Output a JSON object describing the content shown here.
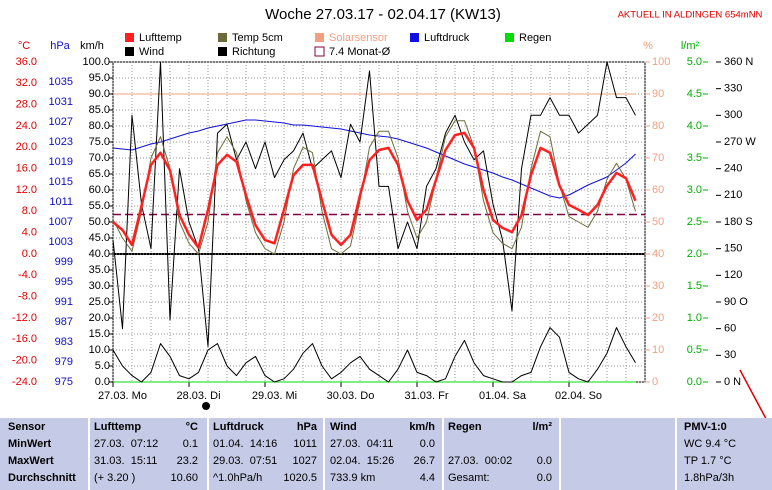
{
  "chart_data": {
    "type": "line",
    "title": "Woche 27.03.17 - 02.04.17 (KW13)",
    "note": "AKTUELL IN ALDINGEN 654mNN",
    "categories": [
      null,
      "27.03. Mo",
      null,
      null,
      null,
      null,
      null,
      null,
      null,
      "28.03. Di",
      null,
      null,
      null,
      null,
      null,
      null,
      null,
      "29.03. Mi",
      null,
      null,
      null,
      null,
      null,
      null,
      null,
      "30.03. Do",
      null,
      null,
      null,
      null,
      null,
      null,
      null,
      "31.03. Fr",
      null,
      null,
      null,
      null,
      null,
      null,
      null,
      "01.04. Sa",
      null,
      null,
      null,
      null,
      null,
      null,
      null,
      "02.04. So",
      null,
      null,
      null,
      null,
      null,
      null
    ],
    "ylabel": "°C",
    "ycolor": "#e00000",
    "ylim": [
      -24,
      36
    ],
    "yticks": [
      {
        "value": -24,
        "label": "-24.0"
      },
      {
        "value": -20,
        "label": "-20.0"
      },
      {
        "value": -16,
        "label": "-16.0"
      },
      {
        "value": -12,
        "label": "-12.0"
      },
      {
        "value": -8,
        "label": "-8.0"
      },
      {
        "value": -4,
        "label": "-4.0"
      },
      {
        "value": 0,
        "label": "0.0"
      },
      {
        "value": 4,
        "label": "4.0"
      },
      {
        "value": 8,
        "label": "8.0"
      },
      {
        "value": 12,
        "label": "12.0"
      },
      {
        "value": 16,
        "label": "16.0"
      },
      {
        "value": 20,
        "label": "20.0"
      },
      {
        "value": 24,
        "label": "24.0"
      },
      {
        "value": 28,
        "label": "28.0"
      },
      {
        "value": 32,
        "label": "32.0"
      },
      {
        "value": 36,
        "label": "36.0"
      }
    ],
    "zero_line": true,
    "y2label": "hPa",
    "y2color": "#1010c0",
    "y2lim": [
      975,
      1039
    ],
    "y2ticks": [
      975,
      979,
      983,
      987,
      991,
      995,
      999,
      1003,
      1007,
      1011,
      1015,
      1019,
      1023,
      1027,
      1031,
      1035
    ],
    "y3label": "km/h",
    "y3color": "#000000",
    "y3lim": [
      0,
      100
    ],
    "y3ticks": [
      {
        "value": 0,
        "label": "0.0"
      },
      {
        "value": 5,
        "label": "5.0"
      },
      {
        "value": 10,
        "label": "10.0"
      },
      {
        "value": 15,
        "label": "15.0"
      },
      {
        "value": 20,
        "label": "20.0"
      },
      {
        "value": 25,
        "label": "25.0"
      },
      {
        "value": 30,
        "label": "30.0"
      },
      {
        "value": 35,
        "label": "35.0"
      },
      {
        "value": 40,
        "label": "40.0"
      },
      {
        "value": 45,
        "label": "45.0"
      },
      {
        "value": 50,
        "label": "50.0"
      },
      {
        "value": 55,
        "label": "55.0"
      },
      {
        "value": 60,
        "label": "60.0"
      },
      {
        "value": 65,
        "label": "65.0"
      },
      {
        "value": 70,
        "label": "70.0"
      },
      {
        "value": 75,
        "label": "75.0"
      },
      {
        "value": 80,
        "label": "80.0"
      },
      {
        "value": 85,
        "label": "85.0"
      },
      {
        "value": 90,
        "label": "90.0"
      },
      {
        "value": 95,
        "label": "95.0"
      },
      {
        "value": 100,
        "label": "100.0"
      }
    ],
    "grid": true,
    "y4label": "%",
    "y4color": "#f0a080",
    "y4lim": [
      0,
      100
    ],
    "y4ticks": [
      0,
      10,
      20,
      30,
      40,
      50,
      60,
      70,
      80,
      90,
      100
    ],
    "y5label": "l/m²",
    "y5color": "#00b000",
    "y5lim": [
      0,
      5
    ],
    "y5ticks": [
      {
        "value": 0,
        "label": "0.0"
      },
      0.5,
      {
        "value": 1,
        "label": "1.0"
      },
      1.5,
      {
        "value": 2,
        "label": "2.0"
      },
      2.5,
      {
        "value": 3,
        "label": "3.0"
      },
      3.5,
      {
        "value": 4,
        "label": "4.0"
      },
      4.5,
      {
        "value": 5,
        "label": "5.0"
      }
    ],
    "y6color": "#000000",
    "y6lim": [
      0,
      360
    ],
    "y6ticks": [
      {
        "value": 0,
        "label": "0 N"
      },
      30,
      60,
      {
        "value": 90,
        "label": "90 O"
      },
      120,
      150,
      {
        "value": 180,
        "label": "180 S"
      },
      210,
      240,
      {
        "value": 270,
        "label": "270 W"
      },
      300,
      330,
      {
        "value": 360,
        "label": "360 N"
      }
    ],
    "series": [
      {
        "name": "Lufttemp",
        "color": "#ff2020",
        "axis": "y",
        "width": 2.5,
        "values": [
          6.0,
          4.5,
          1.7,
          9.0,
          16.7,
          19.0,
          15.7,
          7.3,
          3.6,
          1.2,
          8.3,
          16.7,
          18.6,
          17.3,
          11.0,
          5.4,
          2.6,
          2.0,
          8.3,
          14.8,
          16.7,
          16.7,
          10.0,
          3.6,
          1.7,
          3.6,
          11.0,
          17.6,
          19.5,
          19.9,
          16.7,
          10.0,
          6.4,
          8.3,
          13.9,
          19.5,
          22.3,
          22.7,
          19.9,
          12.0,
          6.4,
          4.9,
          4.1,
          7.3,
          14.8,
          19.9,
          19.0,
          12.8,
          9.2,
          8.3,
          7.3,
          9.2,
          12.8,
          15.2,
          14.2,
          10.0
        ]
      },
      {
        "name": "Wind",
        "color": "#000000",
        "axis": "y3",
        "width": 1,
        "values": [
          10,
          5,
          2,
          0,
          3,
          12,
          8,
          2,
          1,
          3,
          10,
          12,
          5,
          2,
          6,
          8,
          2,
          0,
          1,
          4,
          9,
          12,
          5,
          1,
          3,
          6,
          8,
          4,
          2,
          0,
          4,
          10,
          3,
          2,
          0,
          1,
          8,
          13,
          6,
          2,
          1,
          0,
          0,
          2,
          3,
          11,
          17,
          14,
          3,
          1,
          0,
          4,
          9,
          17,
          11,
          6
        ]
      },
      {
        "name": "Temp 5cm",
        "color": "#6b6b3a",
        "axis": "y",
        "width": 1,
        "values": [
          6.5,
          3,
          0.5,
          8,
          18,
          22,
          16,
          6,
          2,
          0,
          6,
          19,
          22,
          19,
          10,
          4,
          1,
          0,
          6,
          16,
          20,
          19,
          8,
          1,
          0,
          1.5,
          10,
          20,
          23,
          23,
          18,
          8,
          3,
          6,
          14,
          22,
          25,
          25,
          20,
          10,
          4,
          2,
          1,
          5,
          16,
          23,
          22,
          13,
          7,
          6,
          5,
          8,
          14,
          17,
          14,
          8
        ]
      },
      {
        "name": "Richtung",
        "color": "#000000",
        "axis": "y6",
        "width": 1,
        "values": [
          160,
          60,
          300,
          200,
          150,
          360,
          70,
          240,
          180,
          150,
          40,
          280,
          290,
          250,
          270,
          240,
          270,
          230,
          250,
          260,
          280,
          240,
          250,
          260,
          230,
          290,
          270,
          350,
          220,
          220,
          150,
          180,
          150,
          220,
          240,
          280,
          300,
          270,
          250,
          260,
          200,
          160,
          80,
          240,
          300,
          300,
          320,
          300,
          300,
          280,
          290,
          300,
          360,
          320,
          320,
          300
        ]
      },
      {
        "name": "Solarsensor",
        "color": "#f0a080",
        "label_color": "#f0a080",
        "axis": "y4",
        "width": 1,
        "values": [
          90,
          90,
          90,
          90,
          90,
          90,
          90,
          90,
          90,
          90,
          90,
          90,
          90,
          90,
          90,
          90,
          90,
          90,
          90,
          90,
          90,
          90,
          90,
          90,
          90,
          90,
          90,
          90,
          90,
          90,
          90,
          90,
          90,
          90,
          90,
          90,
          90,
          90,
          90,
          90,
          90,
          90,
          90,
          90,
          90,
          90,
          90,
          90,
          90,
          90,
          90,
          90,
          90,
          90,
          90,
          90
        ]
      },
      {
        "name": "7.4 Monat-Ø",
        "color": "#800040",
        "axis": "y",
        "style": "dashed",
        "value": 7.4
      },
      {
        "name": "Luftdruck",
        "color": "#1010e0",
        "axis": "y2",
        "width": 1,
        "values": [
          1021.8,
          1021.6,
          1021.4,
          1022,
          1022.6,
          1023,
          1023.6,
          1024.2,
          1024.8,
          1025.2,
          1025.8,
          1026.2,
          1026.6,
          1027,
          1027.4,
          1027.4,
          1027.2,
          1027,
          1026.8,
          1026.4,
          1026.4,
          1026.2,
          1026,
          1025.8,
          1025.6,
          1025.2,
          1024.8,
          1024.4,
          1024.2,
          1024,
          1023.6,
          1023,
          1022.4,
          1021.8,
          1021,
          1020.2,
          1019.4,
          1018.6,
          1018,
          1017.4,
          1016.8,
          1016,
          1015.4,
          1014.6,
          1013.8,
          1013,
          1012.2,
          1011.8,
          1012.4,
          1013.4,
          1014.4,
          1015.2,
          1016,
          1017.4,
          1018.8,
          1020.6
        ]
      },
      {
        "name": "Regen",
        "color": "#00dd00",
        "axis": "y5",
        "width": 1,
        "values": [
          0,
          0,
          0,
          0,
          0,
          0,
          0,
          0,
          0,
          0,
          0,
          0,
          0,
          0,
          0,
          0,
          0,
          0,
          0,
          0,
          0,
          0,
          0,
          0,
          0,
          0,
          0,
          0,
          0,
          0,
          0,
          0,
          0,
          0,
          0,
          0,
          0,
          0,
          0,
          0,
          0,
          0,
          0,
          0,
          0,
          0,
          0,
          0,
          0,
          0,
          0,
          0,
          0,
          0,
          0,
          0
        ]
      }
    ]
  },
  "table": {
    "sensor": {
      "header": "Sensor",
      "rows": [
        "MinWert",
        "MaxWert",
        "Durchschnitt"
      ]
    },
    "lufttemp": {
      "header": [
        "Lufttemp",
        "°C"
      ],
      "rows": [
        [
          "27.03.  07:12",
          "0.1"
        ],
        [
          "31.03.  15:11",
          "23.2"
        ],
        [
          "(+ 3.20 )",
          "10.60"
        ]
      ]
    },
    "luftdruck": {
      "header": [
        "Luftdruck",
        "hPa"
      ],
      "rows": [
        [
          "01.04.  14:16",
          "1011"
        ],
        [
          "29.03.  07:51",
          "1027"
        ],
        [
          "^1.0hPa/h",
          "1020.5"
        ]
      ]
    },
    "wind": {
      "header": [
        "Wind",
        "km/h"
      ],
      "rows": [
        [
          "27.03.  04:11",
          "0.0"
        ],
        [
          "02.04.  15:26",
          "26.7"
        ],
        [
          "733.9 km",
          "4.4"
        ]
      ]
    },
    "regen": {
      "header": [
        "Regen",
        "l/m²"
      ],
      "rows": [
        [
          "27.03.  00:02",
          "0.0"
        ],
        [
          "Gesamt:",
          "0.0"
        ]
      ]
    },
    "pmv": {
      "header": "PMV-1:0",
      "rows": [
        "WC 9.4 °C",
        "TP 1.7 °C",
        "1.8hPa/3h"
      ]
    }
  }
}
